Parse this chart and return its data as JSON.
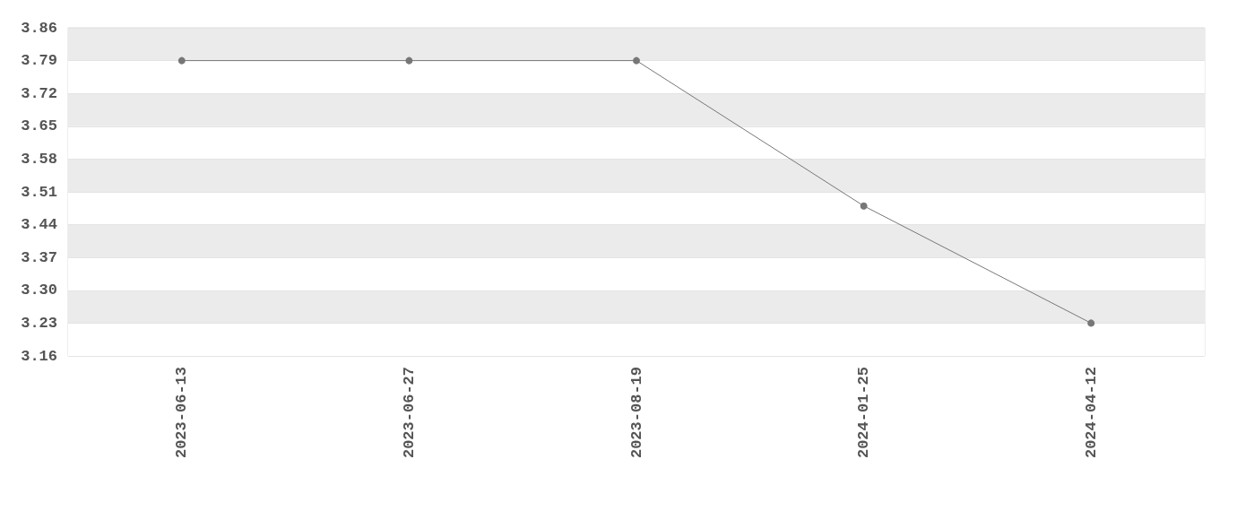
{
  "chart_data": {
    "type": "line",
    "categories": [
      "2023-06-13",
      "2023-06-27",
      "2023-08-19",
      "2024-01-25",
      "2024-04-12"
    ],
    "series": [
      {
        "color": "#777777",
        "values": [
          3.79,
          3.79,
          3.79,
          3.48,
          3.23
        ]
      }
    ],
    "ylim": [
      3.16,
      3.86
    ],
    "yticks": [
      3.16,
      3.23,
      {
        "value": 3.3,
        "label": "3.30"
      },
      3.37,
      3.44,
      3.51,
      3.58,
      3.65,
      3.72,
      3.79,
      3.86
    ],
    "grid": "y",
    "marker": "circle",
    "line_style": "solid"
  }
}
